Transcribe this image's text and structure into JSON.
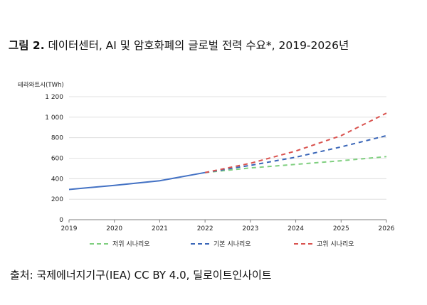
{
  "title": {
    "label": "그림 2.",
    "text": "데이터센터, AI 및 암호화폐의 글로벌 전력 수요*, 2019-2026년"
  },
  "source": "출처:  국제에너지기구(IEA) CC BY 4.0,  딜로이트인사이트",
  "chart_data": {
    "type": "line",
    "ylabel": "테라와트시(TWh)",
    "ylim": [
      0,
      1200
    ],
    "yticks": [
      0,
      200,
      400,
      600,
      800,
      1000,
      1200
    ],
    "ytick_labels": [
      "0",
      "200",
      "400",
      "600",
      "800",
      "1 000",
      "1 200"
    ],
    "x": [
      "2019",
      "2020",
      "2021",
      "2022",
      "2023",
      "2024",
      "2025",
      "2026"
    ],
    "grid": "horizontal",
    "legend_position": "bottom",
    "series": [
      {
        "name": "",
        "style": "solid",
        "color": "#4472c4",
        "x": [
          "2019",
          "2020",
          "2021",
          "2022"
        ],
        "values": [
          295,
          335,
          380,
          460
        ]
      },
      {
        "name": "저위 시나리오",
        "style": "dashed",
        "color": "#7fcf7f",
        "x": [
          "2022",
          "2023",
          "2024",
          "2025",
          "2026"
        ],
        "values": [
          460,
          505,
          540,
          575,
          615
        ]
      },
      {
        "name": "기본 시나리오",
        "style": "dashed",
        "color": "#3a66b8",
        "x": [
          "2022",
          "2023",
          "2024",
          "2025",
          "2026"
        ],
        "values": [
          460,
          530,
          610,
          710,
          820
        ]
      },
      {
        "name": "고위 시나리오",
        "style": "dashed",
        "color": "#d9534f",
        "x": [
          "2022",
          "2023",
          "2024",
          "2025",
          "2026"
        ],
        "values": [
          460,
          550,
          670,
          820,
          1040
        ]
      }
    ]
  }
}
